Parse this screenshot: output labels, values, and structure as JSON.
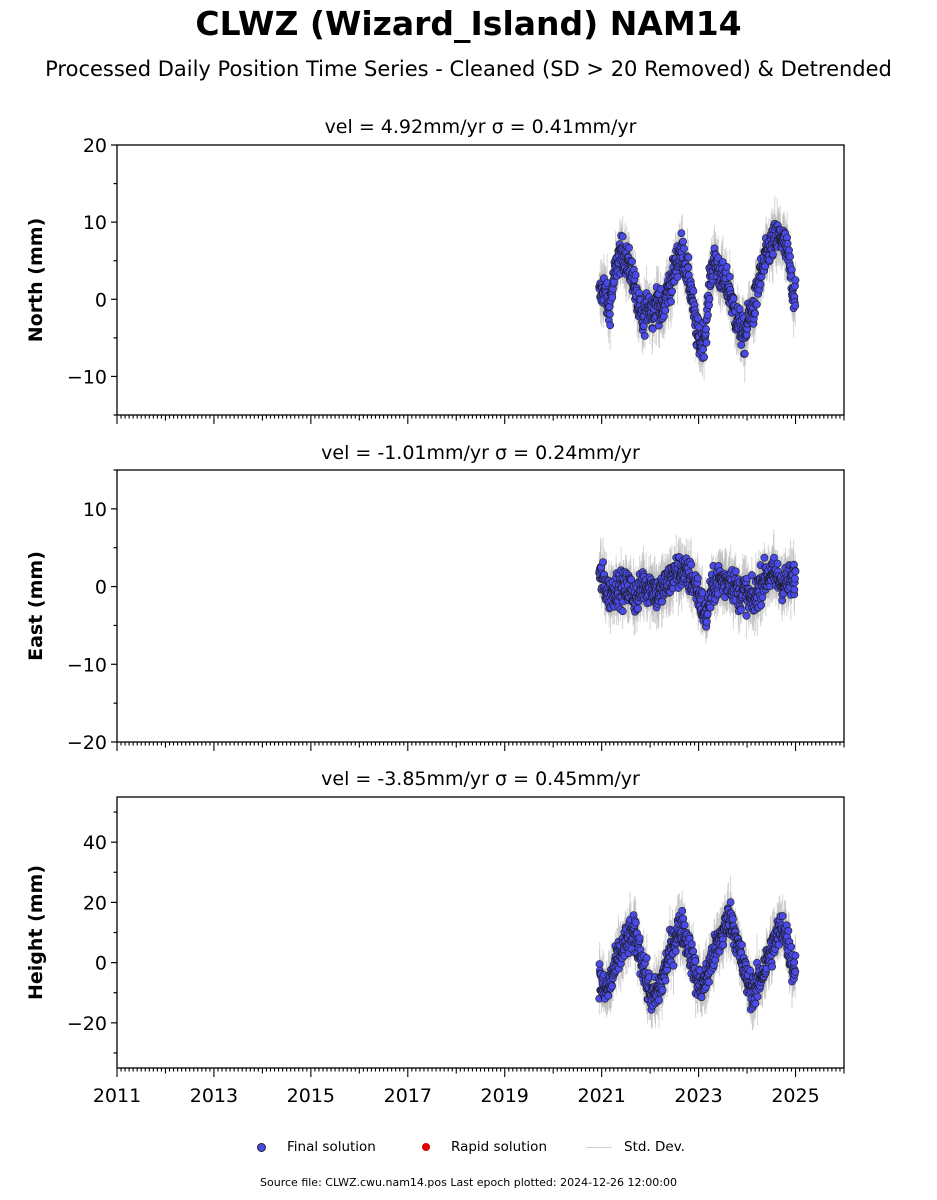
{
  "figure": {
    "title": "CLWZ (Wizard_Island) NAM14",
    "subtitle": "Processed Daily Position Time Series - Cleaned (SD > 20 Removed) & Detrended",
    "source_note": "Source file: CLWZ.cwu.nam14.pos  Last epoch plotted: 2024-12-26 12:00:00"
  },
  "legend": {
    "final": "Final solution",
    "rapid": "Rapid solution",
    "std": "Std. Dev."
  },
  "colors": {
    "final": "#4a4ae8",
    "rapid": "#e00000",
    "std": "#b4b4b4"
  },
  "chart_data": [
    {
      "type": "scatter",
      "title": "vel = 4.92mm/yr   σ = 0.41mm/yr",
      "ylabel": "North (mm)",
      "xlabel": "",
      "xlim": [
        2011,
        2026
      ],
      "ylim": [
        -15,
        20
      ],
      "yticks": [
        -10,
        0,
        10,
        20
      ],
      "xticks": [],
      "data_range": [
        2020.9,
        2025.0
      ],
      "series": [
        {
          "x": [
            2020.95,
            2021.05,
            2021.15,
            2021.25,
            2021.35,
            2021.45,
            2021.55,
            2021.65,
            2021.75,
            2021.85,
            2021.95,
            2022.05,
            2022.15,
            2022.25,
            2022.35,
            2022.45,
            2022.55,
            2022.65,
            2022.75,
            2022.85,
            2022.95,
            2023.05,
            2023.15,
            2023.25,
            2023.35,
            2023.45,
            2023.55,
            2023.65,
            2023.75,
            2023.85,
            2023.95,
            2024.05,
            2024.15,
            2024.25,
            2024.35,
            2024.45,
            2024.55,
            2024.65,
            2024.75,
            2024.85,
            2024.95
          ],
          "y": [
            0.5,
            1.5,
            -1.5,
            2.5,
            5.5,
            6,
            4.5,
            3,
            -1,
            -3,
            -0.5,
            -1.5,
            0,
            -2,
            1,
            2.5,
            5,
            6.5,
            4,
            1,
            -4,
            -6,
            -4,
            3.5,
            5,
            3,
            2,
            1,
            -2,
            -3.5,
            -5,
            -2,
            -1,
            2.5,
            4.5,
            6.5,
            7.5,
            8,
            7.5,
            5.5,
            1
          ]
        }
      ]
    },
    {
      "type": "scatter",
      "title": "vel = -1.01mm/yr   σ = 0.24mm/yr",
      "ylabel": "East (mm)",
      "xlabel": "",
      "xlim": [
        2011,
        2026
      ],
      "ylim": [
        -20,
        15
      ],
      "yticks": [
        -20,
        -10,
        0,
        10
      ],
      "xticks": [],
      "data_range": [
        2020.9,
        2025.0
      ],
      "series": [
        {
          "x": [
            2020.95,
            2021.05,
            2021.15,
            2021.25,
            2021.35,
            2021.45,
            2021.55,
            2021.65,
            2021.75,
            2021.85,
            2021.95,
            2022.05,
            2022.15,
            2022.25,
            2022.35,
            2022.45,
            2022.55,
            2022.65,
            2022.75,
            2022.85,
            2022.95,
            2023.05,
            2023.15,
            2023.25,
            2023.35,
            2023.45,
            2023.55,
            2023.65,
            2023.75,
            2023.85,
            2023.95,
            2024.05,
            2024.15,
            2024.25,
            2024.35,
            2024.45,
            2024.55,
            2024.65,
            2024.75,
            2024.85,
            2024.95
          ],
          "y": [
            1.5,
            0.5,
            -1,
            -0.5,
            0,
            -0.5,
            0,
            -1,
            -1.5,
            0.5,
            0,
            0,
            -1,
            -0.5,
            0.5,
            1,
            2,
            2,
            1.5,
            1,
            0,
            -2,
            -4,
            -1,
            0.5,
            1,
            0.5,
            1,
            0,
            -1,
            -0.5,
            -1.5,
            -2,
            0,
            1,
            1.5,
            1.5,
            1,
            0.5,
            0.5,
            1
          ]
        }
      ]
    },
    {
      "type": "scatter",
      "title": "vel = -3.85mm/yr   σ = 0.45mm/yr",
      "ylabel": "Height (mm)",
      "xlabel": "",
      "xlim": [
        2011,
        2026
      ],
      "ylim": [
        -35,
        55
      ],
      "yticks": [
        -20,
        0,
        20,
        40
      ],
      "xticks": [
        2011,
        2013,
        2015,
        2017,
        2019,
        2021,
        2023,
        2025
      ],
      "data_range": [
        2020.9,
        2025.0
      ],
      "series": [
        {
          "x": [
            2020.95,
            2021.05,
            2021.15,
            2021.25,
            2021.35,
            2021.45,
            2021.55,
            2021.65,
            2021.75,
            2021.85,
            2021.95,
            2022.05,
            2022.15,
            2022.25,
            2022.35,
            2022.45,
            2022.55,
            2022.65,
            2022.75,
            2022.85,
            2022.95,
            2023.05,
            2023.15,
            2023.25,
            2023.35,
            2023.45,
            2023.55,
            2023.65,
            2023.75,
            2023.85,
            2023.95,
            2024.05,
            2024.15,
            2024.25,
            2024.35,
            2024.45,
            2024.55,
            2024.65,
            2024.75,
            2024.85,
            2024.95
          ],
          "y": [
            -5,
            -10,
            -8,
            -3,
            2,
            5,
            8,
            10,
            6,
            0,
            -8,
            -12,
            -10,
            -6,
            0,
            5,
            10,
            12,
            8,
            2,
            -5,
            -8,
            -6,
            0,
            4,
            8,
            12,
            15,
            10,
            3,
            -3,
            -8,
            -10,
            -6,
            -2,
            2,
            6,
            10,
            12,
            6,
            -2
          ]
        }
      ]
    }
  ]
}
